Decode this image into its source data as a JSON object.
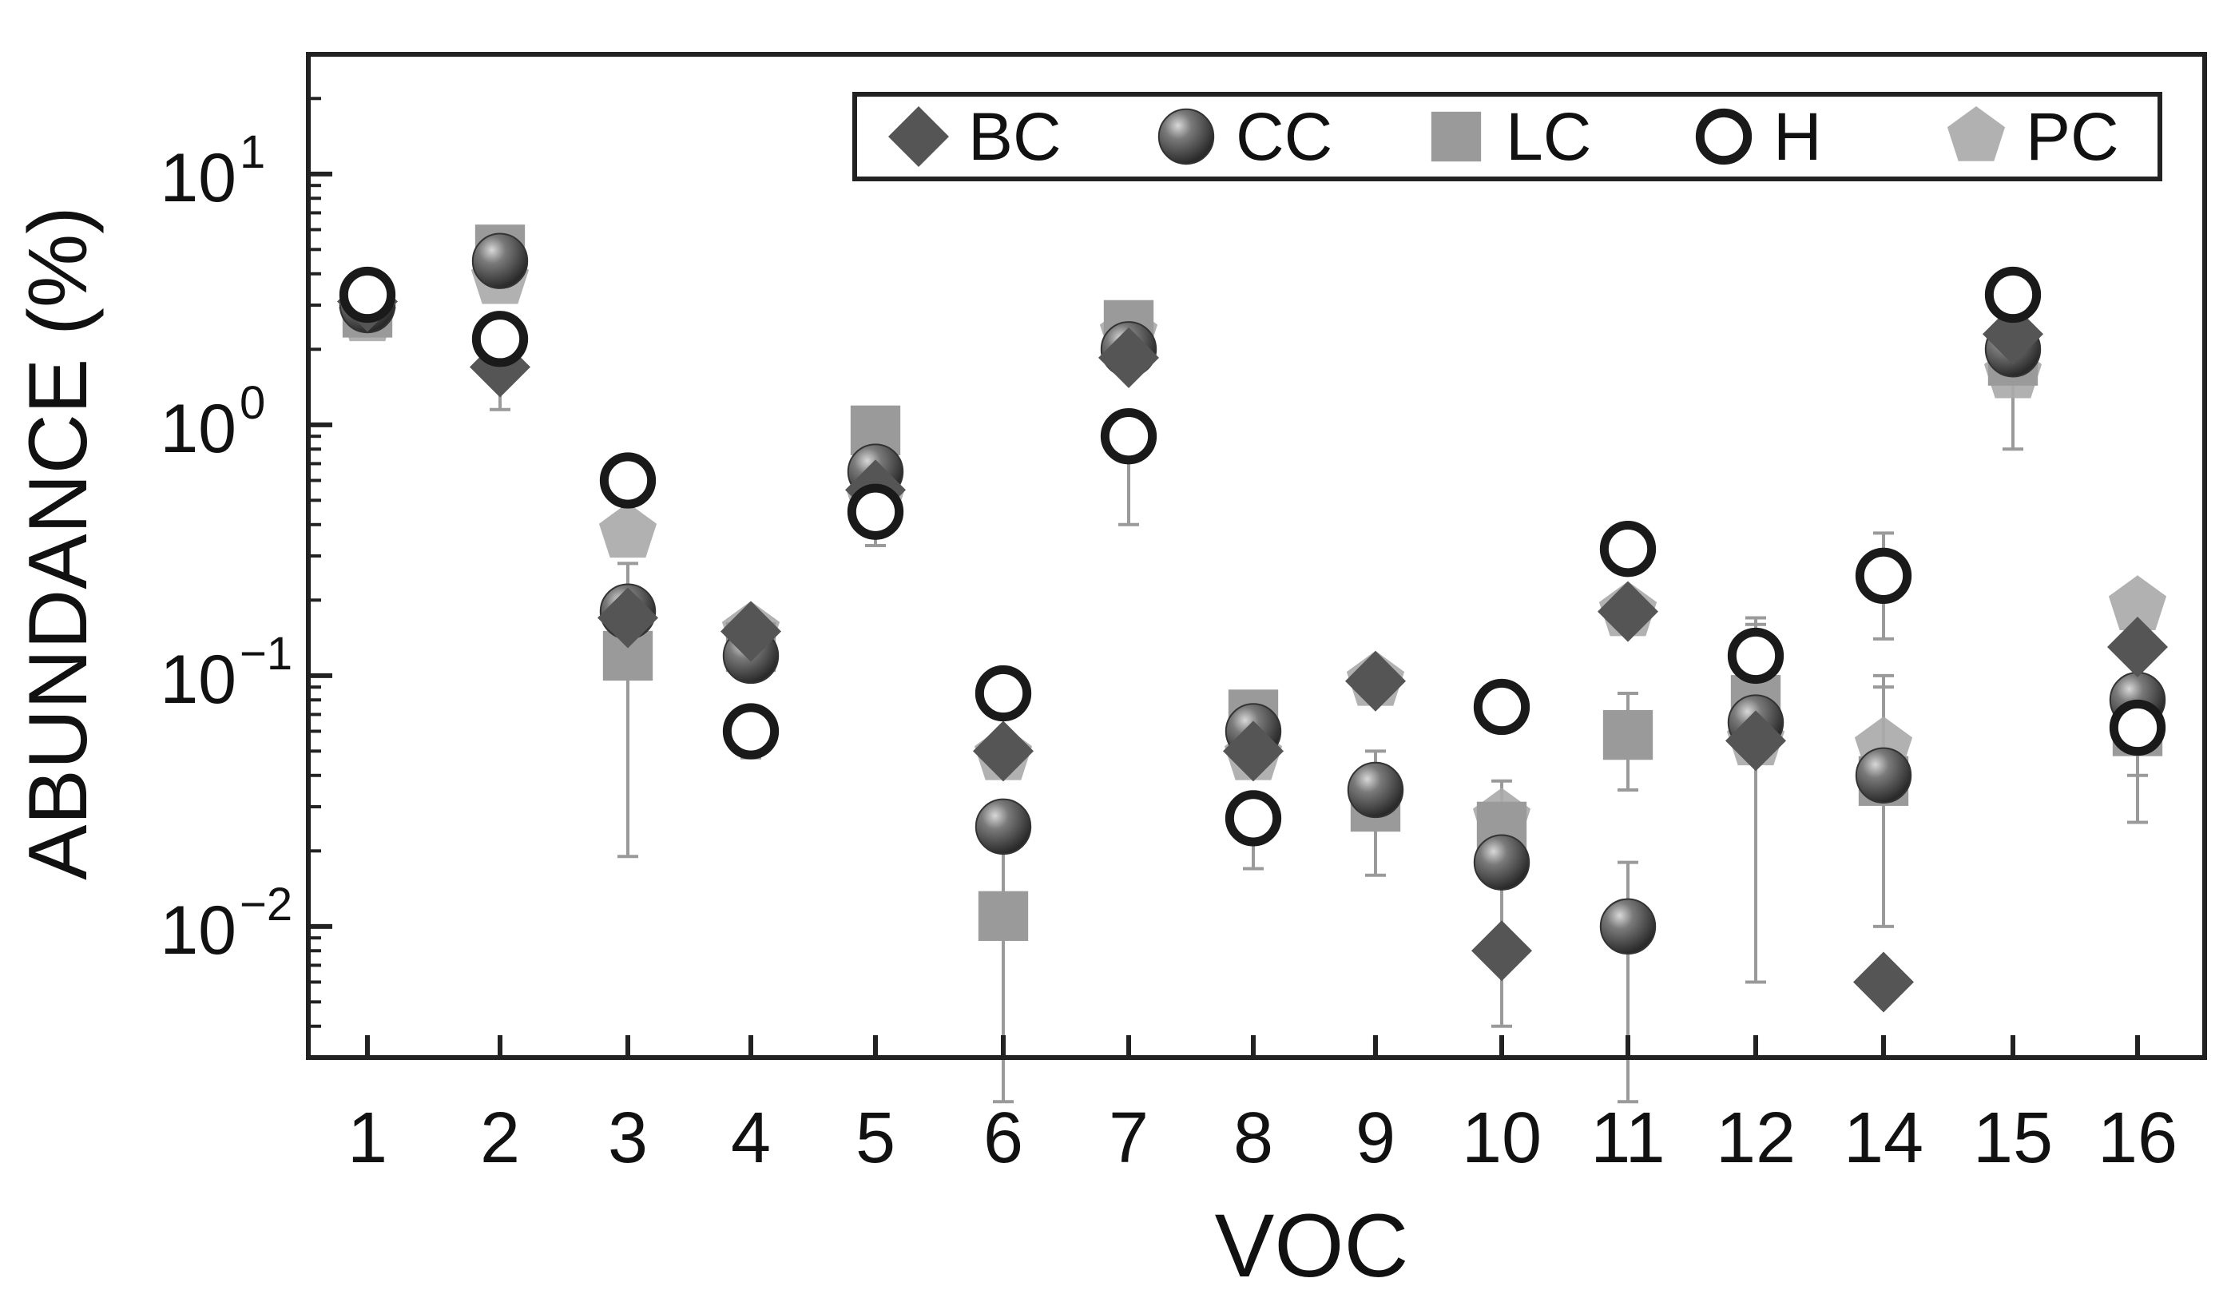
{
  "chart_data": {
    "type": "scatter",
    "xlabel": "VOC",
    "ylabel": "ABUNDANCE (%)",
    "y_scale": "log",
    "ylim": [
      0.003,
      30
    ],
    "y_ticks": [
      {
        "value": 10,
        "base": "10",
        "exp": "1"
      },
      {
        "value": 1,
        "base": "10",
        "exp": "0"
      },
      {
        "value": 0.1,
        "base": "10",
        "exp": "−1"
      },
      {
        "value": 0.01,
        "base": "10",
        "exp": "−2"
      }
    ],
    "categories": [
      "1",
      "2",
      "3",
      "4",
      "5",
      "6",
      "7",
      "8",
      "9",
      "10",
      "11",
      "12",
      "14",
      "15",
      "16"
    ],
    "legend": {
      "placement": "top-right"
    },
    "series": [
      {
        "name": "BC",
        "marker": "diamond",
        "color": "#555555",
        "values": [
          3.1,
          1.7,
          0.17,
          0.15,
          0.55,
          0.05,
          1.85,
          0.05,
          0.095,
          0.008,
          0.18,
          0.055,
          0.006,
          2.3,
          0.13
        ],
        "err_low": [
          null,
          1.15,
          null,
          null,
          null,
          null,
          null,
          null,
          null,
          null,
          null,
          null,
          null,
          null,
          null
        ],
        "err_high": [
          null,
          null,
          null,
          null,
          null,
          null,
          null,
          null,
          null,
          null,
          null,
          null,
          null,
          null,
          null
        ]
      },
      {
        "name": "CC",
        "marker": "sphere",
        "color": "#4a4a4a",
        "values": [
          3.0,
          4.5,
          0.18,
          0.12,
          0.65,
          0.025,
          2.0,
          0.06,
          0.035,
          0.018,
          0.01,
          0.065,
          0.04,
          2.0,
          0.08
        ],
        "err_low": [
          null,
          null,
          null,
          null,
          null,
          null,
          null,
          null,
          null,
          null,
          0.002,
          null,
          null,
          null,
          null
        ],
        "err_high": [
          null,
          null,
          null,
          null,
          null,
          null,
          null,
          null,
          null,
          null,
          0.018,
          null,
          null,
          null,
          null
        ]
      },
      {
        "name": "LC",
        "marker": "square",
        "color": "#9a9a9a",
        "values": [
          2.8,
          5.0,
          0.12,
          0.13,
          0.95,
          0.011,
          2.5,
          0.07,
          0.03,
          0.025,
          0.058,
          0.08,
          0.038,
          1.8,
          0.06
        ],
        "err_low": [
          null,
          null,
          0.019,
          null,
          null,
          0.002,
          null,
          null,
          0.016,
          null,
          0.035,
          0.006,
          0.01,
          null,
          0.026
        ],
        "err_high": [
          null,
          null,
          0.28,
          null,
          null,
          0.028,
          null,
          null,
          0.05,
          null,
          0.085,
          0.16,
          0.1,
          null,
          null
        ]
      },
      {
        "name": "H",
        "marker": "open-circle",
        "color": "#1a1a1a",
        "values": [
          3.3,
          2.2,
          0.6,
          0.06,
          0.45,
          0.085,
          0.9,
          0.027,
          null,
          0.075,
          0.32,
          0.12,
          0.25,
          3.3,
          0.062
        ],
        "err_low": [
          null,
          null,
          null,
          0.047,
          0.33,
          null,
          0.4,
          0.017,
          null,
          null,
          null,
          null,
          0.14,
          null,
          0.04
        ],
        "err_high": [
          null,
          null,
          null,
          null,
          null,
          null,
          null,
          null,
          null,
          null,
          null,
          0.17,
          0.37,
          null,
          null
        ]
      },
      {
        "name": "PC",
        "marker": "pentagon",
        "color": "#aaaaaa",
        "values": [
          2.7,
          3.8,
          0.37,
          0.15,
          0.5,
          0.048,
          2.3,
          0.048,
          0.095,
          0.027,
          0.18,
          0.055,
          0.052,
          1.6,
          0.19
        ],
        "err_low": [
          null,
          null,
          null,
          null,
          null,
          null,
          null,
          null,
          null,
          0.004,
          null,
          null,
          null,
          0.8,
          null
        ],
        "err_high": [
          null,
          null,
          null,
          null,
          null,
          null,
          null,
          null,
          null,
          0.038,
          null,
          null,
          0.09,
          null,
          null
        ]
      }
    ]
  }
}
